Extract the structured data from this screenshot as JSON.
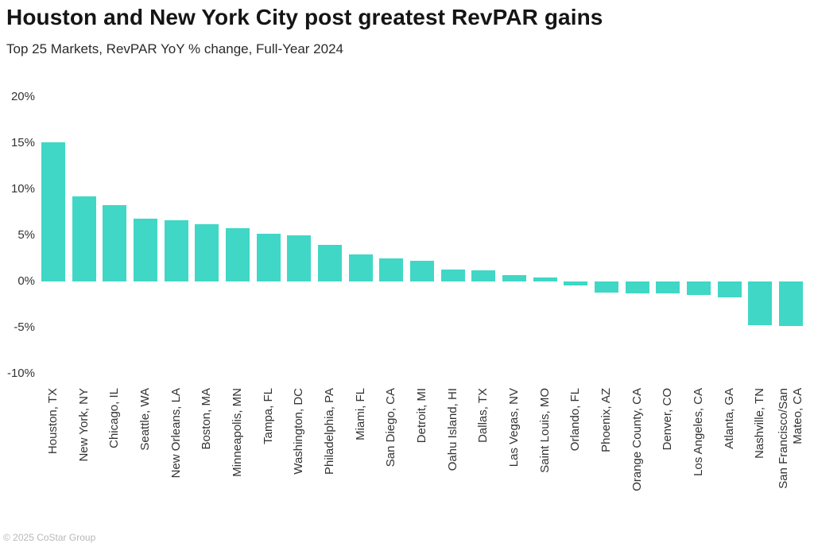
{
  "chart_data": {
    "type": "bar",
    "title": "Houston and New York City post greatest RevPAR gains",
    "subtitle": "Top 25 Markets, RevPAR YoY % change, Full-Year 2024",
    "categories": [
      "Houston, TX",
      "New York, NY",
      "Chicago, IL",
      "Seattle, WA",
      "New Orleans, LA",
      "Boston, MA",
      "Minneapolis, MN",
      "Tampa, FL",
      "Washington, DC",
      "Philadelphia, PA",
      "Miami, FL",
      "San Diego, CA",
      "Detroit, MI",
      "Oahu Island, HI",
      "Dallas, TX",
      "Las Vegas, NV",
      "Saint Louis, MO",
      "Orlando, FL",
      "Phoenix, AZ",
      "Orange County, CA",
      "Denver, CO",
      "Los Angeles, CA",
      "Atlanta, GA",
      "Nashville, TN",
      "San Francisco/San\nMateo, CA"
    ],
    "values": [
      15.1,
      9.2,
      8.3,
      6.8,
      6.6,
      6.2,
      5.8,
      5.2,
      5.0,
      4.0,
      2.9,
      2.5,
      2.2,
      1.3,
      1.2,
      0.7,
      0.4,
      -0.4,
      -1.2,
      -1.3,
      -1.3,
      -1.5,
      -1.7,
      -4.7,
      -4.8
    ],
    "yticks": [
      20,
      15,
      10,
      5,
      0,
      -5,
      -10
    ],
    "ytick_suffix": "%",
    "ylim": [
      -10,
      20
    ],
    "grid": false,
    "legend": "none",
    "bar_color": "#40d7c6",
    "footer": "© 2025 CoStar Group"
  }
}
